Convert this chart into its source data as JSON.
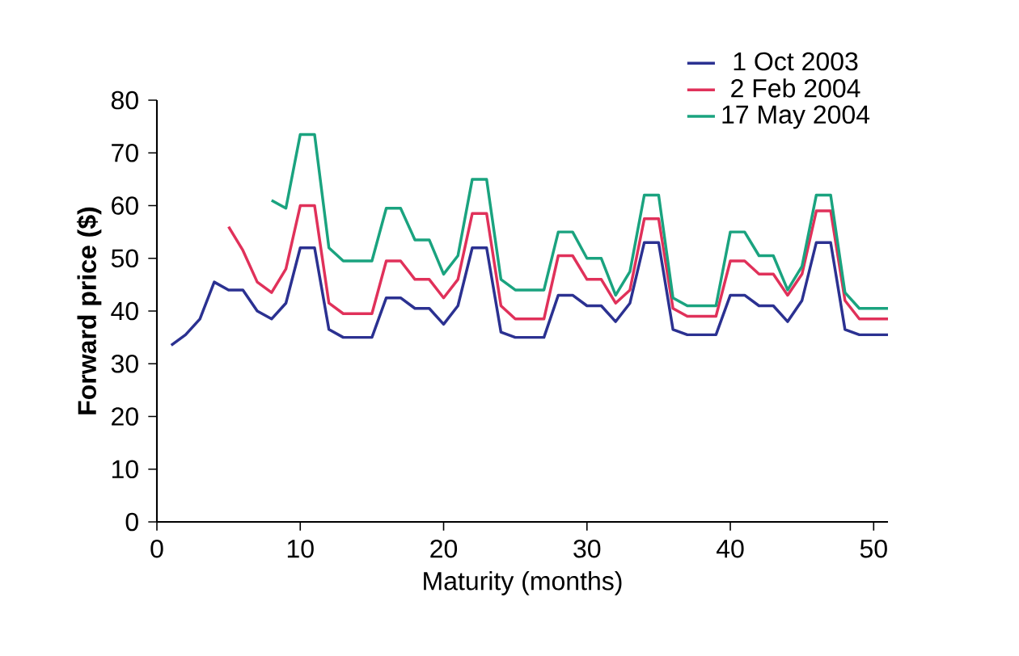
{
  "chart_data": {
    "type": "line",
    "xlabel": "Maturity (months)",
    "ylabel": "Forward price ($)",
    "xlim": [
      0,
      51
    ],
    "xticks": [
      0,
      10,
      20,
      30,
      40,
      50
    ],
    "ylim": [
      0,
      80
    ],
    "yticks": [
      0,
      10,
      20,
      30,
      40,
      50,
      60,
      70,
      80
    ],
    "grid": false,
    "legend": "top right",
    "marker": "none",
    "line_style": "solid",
    "series": [
      {
        "name": "1 Oct 2003",
        "color": "#2b3191",
        "x": [
          1,
          2,
          3,
          4,
          5,
          6,
          7,
          8,
          9,
          10,
          11,
          12,
          13,
          14,
          15,
          16,
          17,
          18,
          19,
          20,
          21,
          22,
          23,
          24,
          25,
          26,
          27,
          28,
          29,
          30,
          31,
          32,
          33,
          34,
          35,
          36,
          37,
          38,
          39,
          40,
          41,
          42,
          43,
          44,
          45,
          46,
          47,
          48,
          49,
          50,
          51
        ],
        "values": [
          33.5,
          35.5,
          38.5,
          45.5,
          44,
          44,
          40,
          38.5,
          41.5,
          52,
          52,
          36.5,
          35,
          35,
          35,
          42.5,
          42.5,
          40.5,
          40.5,
          37.5,
          41,
          52,
          52,
          36,
          35,
          35,
          35,
          43,
          43,
          41,
          41,
          38,
          41.5,
          53,
          53,
          36.5,
          35.5,
          35.5,
          35.5,
          43,
          43,
          41,
          41,
          38,
          42,
          53,
          53,
          36.5,
          35.5,
          35.5,
          35.5
        ]
      },
      {
        "name": "2 Feb 2004",
        "color": "#e0315a",
        "x": [
          5,
          6,
          7,
          8,
          9,
          10,
          11,
          12,
          13,
          14,
          15,
          16,
          17,
          18,
          19,
          20,
          21,
          22,
          23,
          24,
          25,
          26,
          27,
          28,
          29,
          30,
          31,
          32,
          33,
          34,
          35,
          36,
          37,
          38,
          39,
          40,
          41,
          42,
          43,
          44,
          45,
          46,
          47,
          48,
          49,
          50,
          51
        ],
        "values": [
          56,
          51.5,
          45.5,
          43.5,
          48,
          60,
          60,
          41.5,
          39.5,
          39.5,
          39.5,
          49.5,
          49.5,
          46,
          46,
          42.5,
          46,
          58.5,
          58.5,
          41,
          38.5,
          38.5,
          38.5,
          50.5,
          50.5,
          46,
          46,
          41.5,
          44,
          57.5,
          57.5,
          40.5,
          39,
          39,
          39,
          49.5,
          49.5,
          47,
          47,
          43,
          47,
          59,
          59,
          42,
          38.5,
          38.5,
          38.5
        ]
      },
      {
        "name": "17 May 2004",
        "color": "#1aa37f",
        "x": [
          8,
          9,
          10,
          11,
          12,
          13,
          14,
          15,
          16,
          17,
          18,
          19,
          20,
          21,
          22,
          23,
          24,
          25,
          26,
          27,
          28,
          29,
          30,
          31,
          32,
          33,
          34,
          35,
          36,
          37,
          38,
          39,
          40,
          41,
          42,
          43,
          44,
          45,
          46,
          47,
          48,
          49,
          50,
          51
        ],
        "values": [
          61,
          59.5,
          73.5,
          73.5,
          52,
          49.5,
          49.5,
          49.5,
          59.5,
          59.5,
          53.5,
          53.5,
          47,
          50.5,
          65,
          65,
          46,
          44,
          44,
          44,
          55,
          55,
          50,
          50,
          43,
          47.5,
          62,
          62,
          42.5,
          41,
          41,
          41,
          55,
          55,
          50.5,
          50.5,
          44,
          48.5,
          62,
          62,
          43.5,
          40.5,
          40.5,
          40.5
        ]
      }
    ]
  }
}
